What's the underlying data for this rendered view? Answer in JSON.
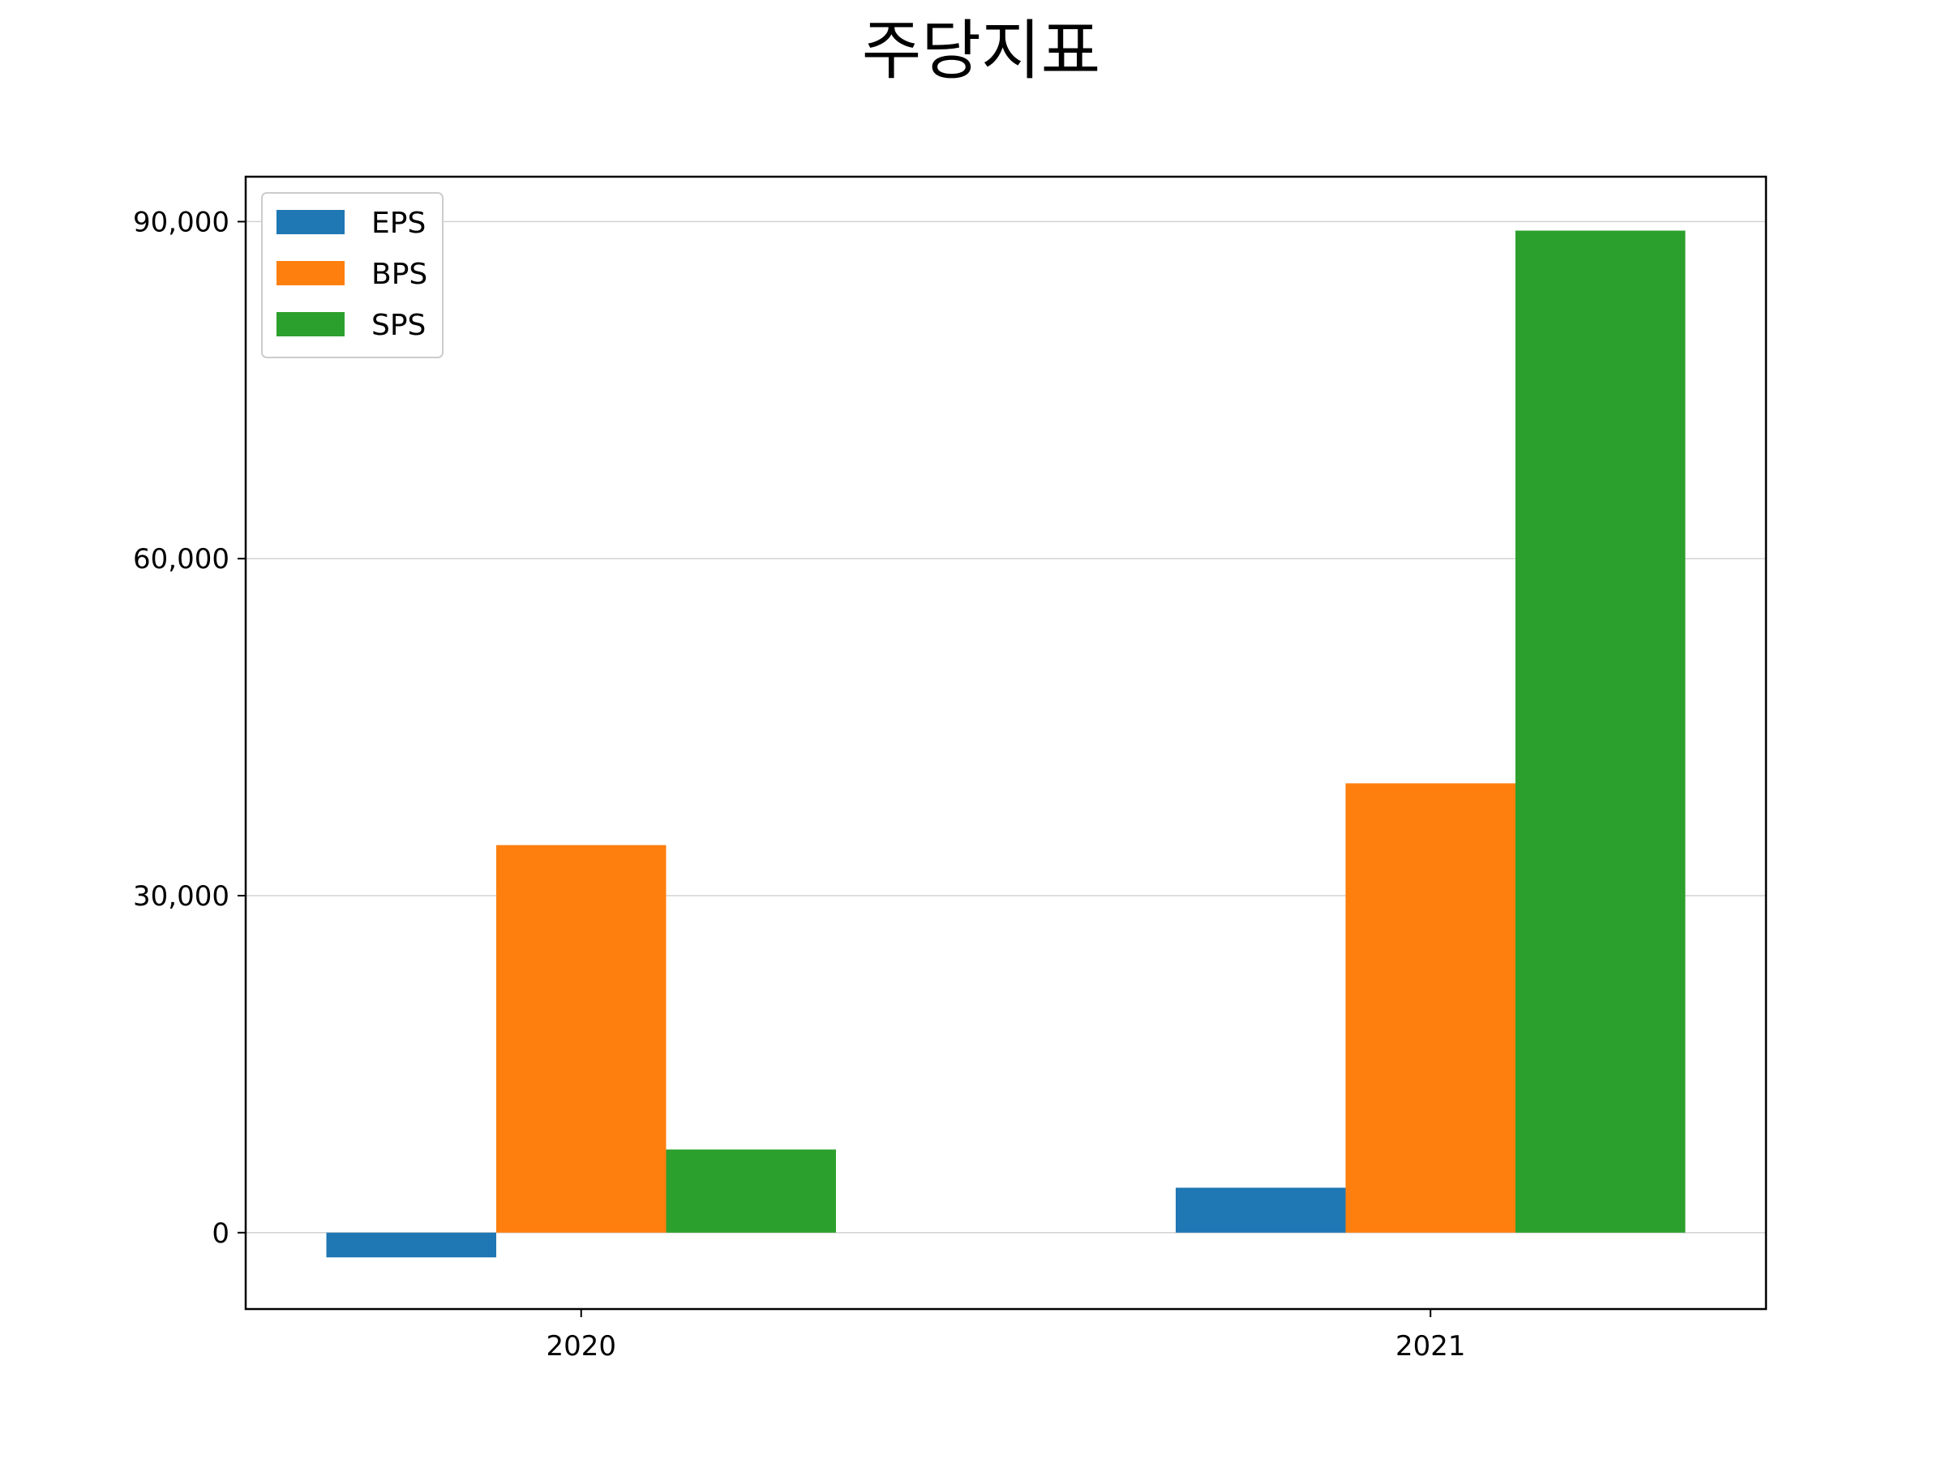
{
  "chart_data": {
    "type": "bar",
    "title": "주당지표",
    "xlabel": "",
    "ylabel": "",
    "categories": [
      "2020",
      "2021"
    ],
    "series": [
      {
        "name": "EPS",
        "values": [
          -2200,
          4000
        ]
      },
      {
        "name": "BPS",
        "values": [
          34500,
          40000
        ]
      },
      {
        "name": "SPS",
        "values": [
          7400,
          89200
        ]
      }
    ],
    "ylim": [
      -6800,
      94000
    ],
    "yticks": [
      0,
      30000,
      60000,
      90000
    ],
    "ytick_labels": [
      "0",
      "30,000",
      "60,000",
      "90,000"
    ],
    "grid": "y",
    "legend_position": "upper-left"
  },
  "colors": {
    "EPS": "#1f77b4",
    "BPS": "#ff7f0e",
    "SPS": "#2ca02c",
    "grid": "#d3d3d3",
    "axes": "#000000"
  }
}
